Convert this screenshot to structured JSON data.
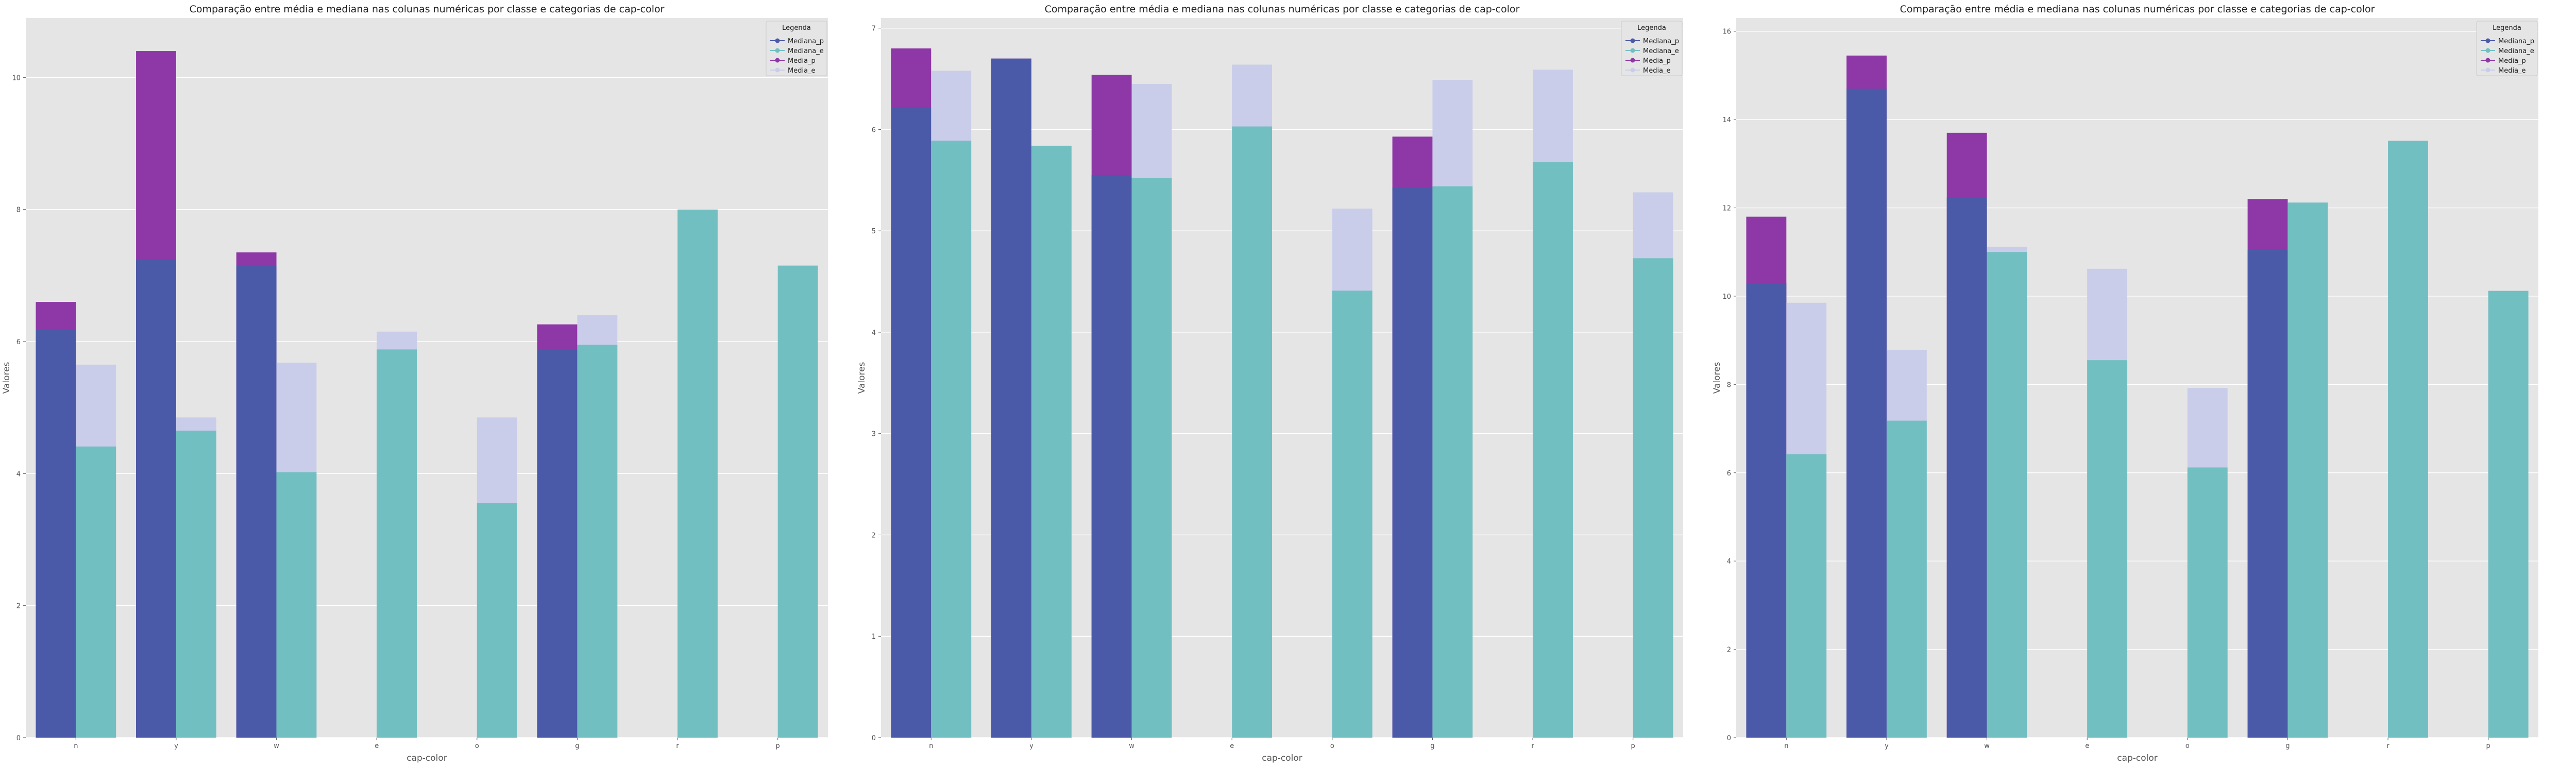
{
  "legend_title": "Legenda",
  "colors": {
    "Mediana_p": "#4b5aa8",
    "Mediana_e": "#72bfc1",
    "Media_p": "#8e37a6",
    "Media_e": "#c9cde9"
  },
  "chart_data": [
    {
      "type": "bar",
      "title": "Comparação entre média e mediana nas colunas numéricas por classe e categorias de cap-color",
      "xlabel": "cap-color",
      "ylabel": "Valores",
      "categories": [
        "n",
        "y",
        "w",
        "e",
        "o",
        "g",
        "r",
        "p"
      ],
      "ylim": [
        0,
        10.9
      ],
      "yticks": [
        0,
        2,
        4,
        6,
        8,
        10
      ],
      "grid": true,
      "legend_position": "top-right",
      "series": [
        {
          "name": "Mediana_p",
          "values": [
            6.18,
            7.24,
            7.15,
            null,
            null,
            5.88,
            null,
            null
          ]
        },
        {
          "name": "Mediana_e",
          "values": [
            4.41,
            4.65,
            4.02,
            5.88,
            3.55,
            5.95,
            8.0,
            7.15
          ]
        },
        {
          "name": "Media_p",
          "values": [
            6.6,
            10.4,
            7.35,
            null,
            null,
            6.26,
            null,
            null
          ]
        },
        {
          "name": "Media_e",
          "values": [
            5.65,
            4.85,
            5.68,
            6.15,
            4.85,
            6.4,
            null,
            null
          ]
        }
      ]
    },
    {
      "type": "bar",
      "title": "Comparação entre média e mediana nas colunas numéricas por classe e categorias de cap-color",
      "xlabel": "cap-color",
      "ylabel": "Valores",
      "categories": [
        "n",
        "y",
        "w",
        "e",
        "o",
        "g",
        "r",
        "p"
      ],
      "ylim": [
        0,
        7.1
      ],
      "yticks": [
        0,
        1,
        2,
        3,
        4,
        5,
        6,
        7
      ],
      "grid": true,
      "legend_position": "top-right",
      "series": [
        {
          "name": "Mediana_p",
          "values": [
            6.22,
            6.7,
            5.55,
            null,
            null,
            5.43,
            null,
            null
          ]
        },
        {
          "name": "Mediana_e",
          "values": [
            5.89,
            5.84,
            5.52,
            6.03,
            4.41,
            5.44,
            5.68,
            4.73
          ]
        },
        {
          "name": "Media_p",
          "values": [
            6.8,
            6.7,
            6.54,
            null,
            null,
            5.93,
            null,
            null
          ]
        },
        {
          "name": "Media_e",
          "values": [
            6.58,
            5.84,
            6.45,
            6.64,
            5.22,
            6.49,
            6.59,
            5.38
          ]
        }
      ]
    },
    {
      "type": "bar",
      "title": "Comparação entre média e mediana nas colunas numéricas por classe e categorias de cap-color",
      "xlabel": "cap-color",
      "ylabel": "Valores",
      "categories": [
        "n",
        "y",
        "w",
        "e",
        "o",
        "g",
        "r",
        "p"
      ],
      "ylim": [
        0,
        16.3
      ],
      "yticks": [
        0,
        2,
        4,
        6,
        8,
        10,
        12,
        14,
        16
      ],
      "grid": true,
      "legend_position": "top-right",
      "series": [
        {
          "name": "Mediana_p",
          "values": [
            10.3,
            14.7,
            12.25,
            null,
            null,
            11.05,
            null,
            null
          ]
        },
        {
          "name": "Mediana_e",
          "values": [
            6.42,
            7.18,
            11.0,
            8.55,
            6.12,
            12.12,
            13.52,
            10.12
          ]
        },
        {
          "name": "Media_p",
          "values": [
            11.8,
            15.45,
            13.7,
            null,
            null,
            12.2,
            null,
            null
          ]
        },
        {
          "name": "Media_e",
          "values": [
            9.85,
            8.78,
            11.12,
            10.62,
            7.92,
            12.12,
            13.52,
            10.12
          ]
        }
      ]
    }
  ]
}
